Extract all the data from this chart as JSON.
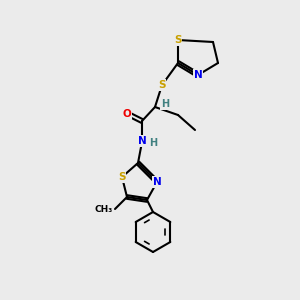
{
  "bg_color": "#ebebeb",
  "atom_colors": {
    "S": "#c8a000",
    "N": "#0000ee",
    "O": "#ee0000",
    "C": "#000000",
    "H": "#408080"
  },
  "bond_color": "#000000",
  "bond_lw": 1.5
}
